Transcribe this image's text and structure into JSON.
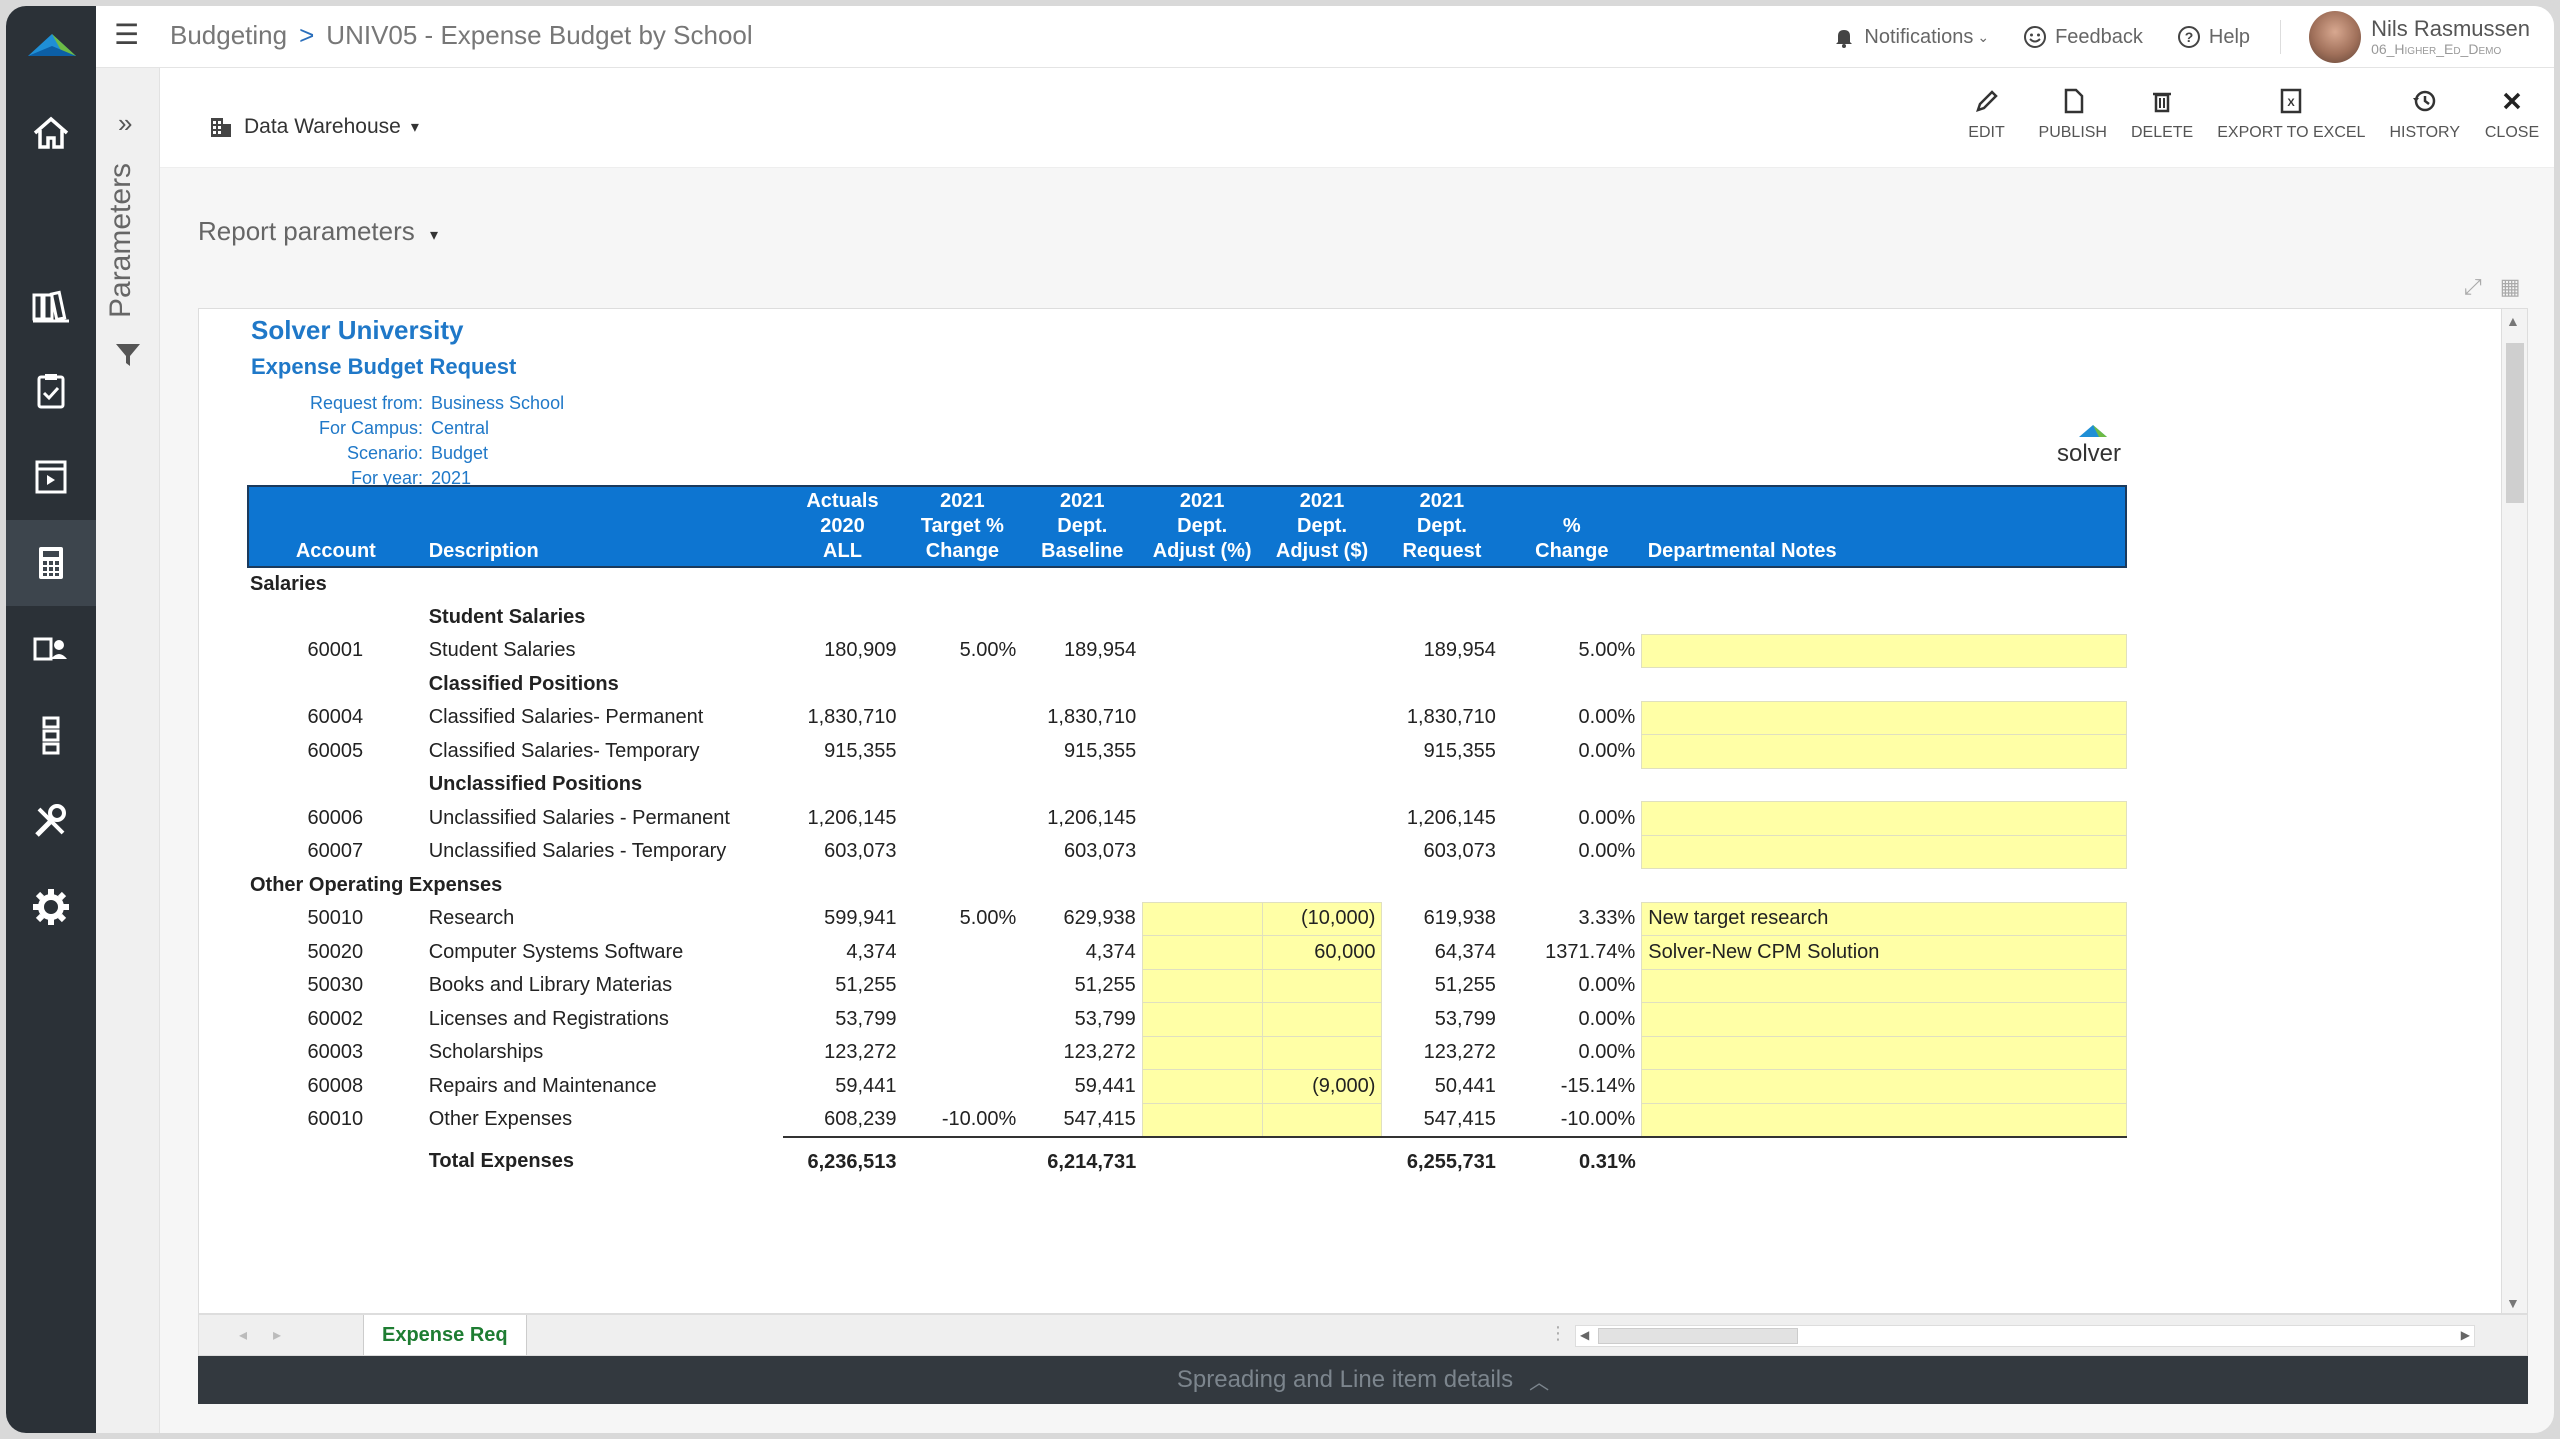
{
  "breadcrumb": {
    "root": "Budgeting",
    "separator": ">",
    "current": "UNIV05 - Expense Budget by School"
  },
  "topbar": {
    "notifications": "Notifications",
    "feedback": "Feedback",
    "help": "Help",
    "user_name": "Nils Rasmussen",
    "user_role": "06_Higher_Ed_Demo"
  },
  "sidebar": {
    "params_label": "Parameters",
    "expand_glyph": "»"
  },
  "toolbar": {
    "data_source": "Data Warehouse",
    "actions": [
      "EDIT",
      "PUBLISH",
      "DELETE",
      "EXPORT TO EXCEL",
      "HISTORY",
      "CLOSE"
    ]
  },
  "report_parameters_label": "Report parameters",
  "report": {
    "org": "Solver University",
    "title": "Expense Budget Request",
    "meta": [
      {
        "k": "Request from:",
        "v": "Business School"
      },
      {
        "k": "For Campus:",
        "v": "Central"
      },
      {
        "k": "Scenario:",
        "v": "Budget"
      },
      {
        "k": "For year:",
        "v": "2021"
      }
    ],
    "logo_text": "solver",
    "headers": {
      "account": "Account",
      "description": "Description",
      "actuals": [
        "Actuals",
        "2020",
        "ALL"
      ],
      "target": [
        "2021",
        "Target %",
        "Change"
      ],
      "baseline": [
        "2021",
        "Dept.",
        "Baseline"
      ],
      "adjp": [
        "2021",
        "Dept.",
        "Adjust (%)"
      ],
      "adjd": [
        "2021",
        "Dept.",
        "Adjust ($)"
      ],
      "request": [
        "2021",
        "Dept.",
        "Request"
      ],
      "change": [
        "%",
        "Change"
      ],
      "notes": "Departmental Notes"
    },
    "rows": [
      {
        "type": "section",
        "label": "Salaries"
      },
      {
        "type": "group",
        "label": "Student Salaries"
      },
      {
        "type": "line",
        "acc": "60001",
        "desc": "Student Salaries",
        "act": "180,909",
        "tgt": "5.00%",
        "base": "189,954",
        "adjp": "",
        "adjd": "",
        "req": "189,954",
        "chg": "5.00%",
        "notes": "",
        "inputs": false
      },
      {
        "type": "group",
        "label": "Classified Positions"
      },
      {
        "type": "line",
        "acc": "60004",
        "desc": "Classified Salaries- Permanent",
        "act": "1,830,710",
        "tgt": "",
        "base": "1,830,710",
        "adjp": "",
        "adjd": "",
        "req": "1,830,710",
        "chg": "0.00%",
        "notes": "",
        "inputs": false
      },
      {
        "type": "line",
        "acc": "60005",
        "desc": "Classified Salaries- Temporary",
        "act": "915,355",
        "tgt": "",
        "base": "915,355",
        "adjp": "",
        "adjd": "",
        "req": "915,355",
        "chg": "0.00%",
        "notes": "",
        "inputs": false
      },
      {
        "type": "group",
        "label": "Unclassified Positions"
      },
      {
        "type": "line",
        "acc": "60006",
        "desc": "Unclassified Salaries - Permanent",
        "act": "1,206,145",
        "tgt": "",
        "base": "1,206,145",
        "adjp": "",
        "adjd": "",
        "req": "1,206,145",
        "chg": "0.00%",
        "notes": "",
        "inputs": false
      },
      {
        "type": "line",
        "acc": "60007",
        "desc": "Unclassified Salaries - Temporary",
        "act": "603,073",
        "tgt": "",
        "base": "603,073",
        "adjp": "",
        "adjd": "",
        "req": "603,073",
        "chg": "0.00%",
        "notes": "",
        "inputs": false
      },
      {
        "type": "section",
        "label": "Other Operating Expenses"
      },
      {
        "type": "line",
        "acc": "50010",
        "desc": "Research",
        "act": "599,941",
        "tgt": "5.00%",
        "base": "629,938",
        "adjp": "",
        "adjd": "(10,000)",
        "req": "619,938",
        "chg": "3.33%",
        "notes": "New target research",
        "inputs": true
      },
      {
        "type": "line",
        "acc": "50020",
        "desc": "Computer Systems Software",
        "act": "4,374",
        "tgt": "",
        "base": "4,374",
        "adjp": "",
        "adjd": "60,000",
        "req": "64,374",
        "chg": "1371.74%",
        "notes": "Solver-New CPM Solution",
        "inputs": true
      },
      {
        "type": "line",
        "acc": "50030",
        "desc": "Books and Library Materias",
        "act": "51,255",
        "tgt": "",
        "base": "51,255",
        "adjp": "",
        "adjd": "",
        "req": "51,255",
        "chg": "0.00%",
        "notes": "",
        "inputs": true
      },
      {
        "type": "line",
        "acc": "60002",
        "desc": "Licenses and Registrations",
        "act": "53,799",
        "tgt": "",
        "base": "53,799",
        "adjp": "",
        "adjd": "",
        "req": "53,799",
        "chg": "0.00%",
        "notes": "",
        "inputs": true
      },
      {
        "type": "line",
        "acc": "60003",
        "desc": "Scholarships",
        "act": "123,272",
        "tgt": "",
        "base": "123,272",
        "adjp": "",
        "adjd": "",
        "req": "123,272",
        "chg": "0.00%",
        "notes": "",
        "inputs": true
      },
      {
        "type": "line",
        "acc": "60008",
        "desc": "Repairs and Maintenance",
        "act": "59,441",
        "tgt": "",
        "base": "59,441",
        "adjp": "",
        "adjd": "(9,000)",
        "req": "50,441",
        "chg": "-15.14%",
        "notes": "",
        "inputs": true
      },
      {
        "type": "line",
        "acc": "60010",
        "desc": "Other Expenses",
        "act": "608,239",
        "tgt": "-10.00%",
        "base": "547,415",
        "adjp": "",
        "adjd": "",
        "req": "547,415",
        "chg": "-10.00%",
        "notes": "",
        "inputs": true
      },
      {
        "type": "total",
        "label": "Total Expenses",
        "act": "6,236,513",
        "base": "6,214,731",
        "req": "6,255,731",
        "chg": "0.31%"
      }
    ]
  },
  "sheet_tab": "Expense Req",
  "bottom_bar": "Spreading and Line item details",
  "colors": {
    "accent": "#0d75d1",
    "title": "#1f78c8",
    "input_cell": "#ffffa6",
    "nav_bg": "#2b3137"
  }
}
